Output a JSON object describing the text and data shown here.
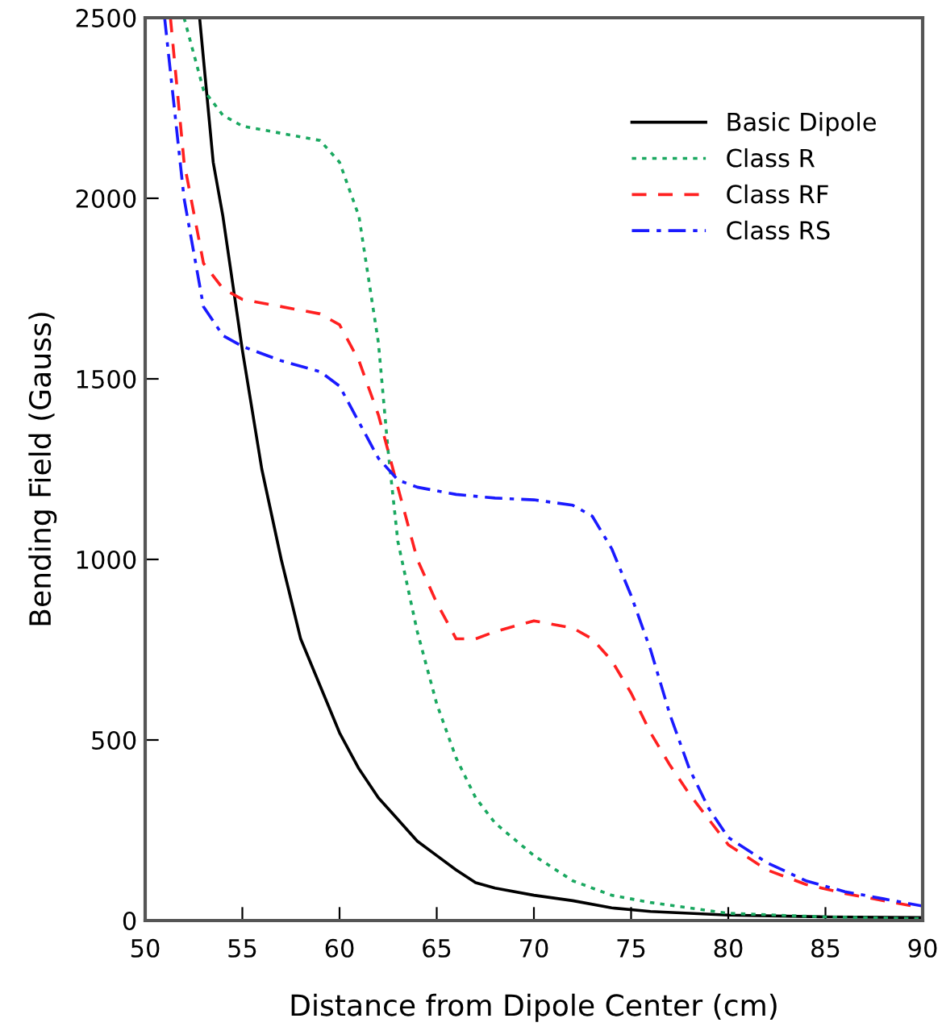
{
  "chart_data": {
    "type": "line",
    "xlabel": "Distance from Dipole Center (cm)",
    "ylabel": "Bending Field (Gauss)",
    "xlim": [
      50,
      90
    ],
    "ylim": [
      0,
      2500
    ],
    "xticks": [
      50,
      55,
      60,
      65,
      70,
      75,
      80,
      85,
      90
    ],
    "yticks": [
      0,
      500,
      1000,
      1500,
      2000,
      2500
    ],
    "grid": false,
    "legend": "top right",
    "marker": "none",
    "series": [
      {
        "name": "Basic Dipole",
        "color": "#000000",
        "line_style": "solid",
        "x": [
          52.8,
          53.5,
          54,
          55,
          56,
          57,
          58,
          59,
          60,
          61,
          62,
          63,
          64,
          65,
          66,
          67,
          68,
          70,
          72,
          74,
          76,
          80,
          85,
          90
        ],
        "values": [
          2500,
          2100,
          1950,
          1580,
          1250,
          1000,
          780,
          650,
          520,
          420,
          340,
          280,
          220,
          180,
          140,
          105,
          90,
          70,
          55,
          35,
          25,
          15,
          10,
          8
        ]
      },
      {
        "name": "Class R",
        "color": "#1aa860",
        "line_style": "dotted",
        "x": [
          52,
          53,
          54,
          55,
          57,
          59,
          60,
          61,
          62,
          62.5,
          63,
          64,
          65,
          66,
          67,
          68,
          70,
          72,
          74,
          76,
          78,
          80,
          85,
          90
        ],
        "values": [
          2500,
          2300,
          2230,
          2200,
          2180,
          2160,
          2100,
          1950,
          1600,
          1300,
          1050,
          800,
          600,
          450,
          340,
          270,
          180,
          110,
          70,
          50,
          35,
          20,
          10,
          5
        ]
      },
      {
        "name": "Class RF",
        "color": "#ff2020",
        "line_style": "dashed",
        "x": [
          51.3,
          52,
          53,
          54,
          55,
          57,
          59,
          60,
          61,
          62,
          63,
          64,
          65,
          66,
          67,
          68,
          70,
          72,
          73,
          74,
          75,
          76,
          77,
          78,
          79,
          80,
          82,
          84,
          86,
          88,
          90
        ],
        "values": [
          2500,
          2100,
          1820,
          1750,
          1720,
          1700,
          1680,
          1650,
          1550,
          1400,
          1200,
          1000,
          880,
          780,
          780,
          800,
          830,
          810,
          780,
          720,
          630,
          520,
          430,
          350,
          280,
          210,
          140,
          100,
          75,
          55,
          35
        ]
      },
      {
        "name": "Class RS",
        "color": "#1a1aff",
        "line_style": "dashdot",
        "x": [
          51,
          52,
          53,
          54,
          55,
          57,
          59,
          60,
          61,
          62,
          63,
          64,
          66,
          68,
          70,
          72,
          73,
          74,
          75,
          76,
          77,
          78,
          79,
          80,
          82,
          84,
          86,
          88,
          90
        ],
        "values": [
          2500,
          2000,
          1700,
          1620,
          1590,
          1550,
          1520,
          1480,
          1380,
          1280,
          1220,
          1200,
          1180,
          1170,
          1165,
          1150,
          1120,
          1030,
          900,
          750,
          570,
          420,
          310,
          230,
          160,
          110,
          80,
          60,
          40
        ]
      }
    ]
  }
}
